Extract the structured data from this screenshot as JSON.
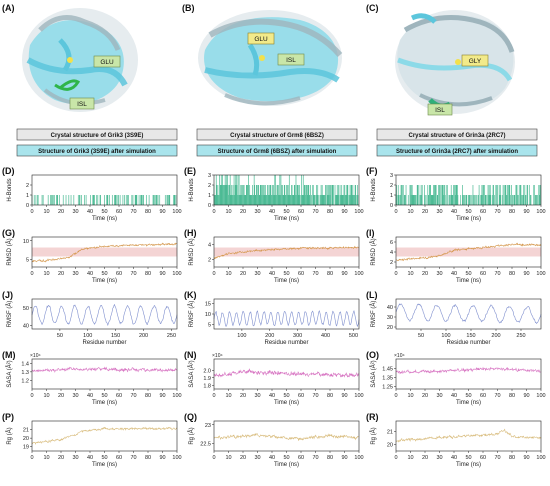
{
  "colors": {
    "hbond": "#4dbb95",
    "rmsd": "#d4964a",
    "rmsd_band": "#f4d4d4",
    "rmsf": "#7f8fce",
    "sasa": "#d774c2",
    "rg": "#d9bd7f",
    "crystal_box": "#e8e8e8",
    "sim_box": "#a9e4ec",
    "protein": "#7fd8e8",
    "protein_dark": "#9fb5bd",
    "tag_box": "#c9e6a8"
  },
  "structures": [
    {
      "panel": "(A)",
      "tags": [
        "GLU",
        "ISL"
      ],
      "crystal_label": "Crystal structure of Grik3 (3S9E)",
      "sim_label": "Structure of Grik3 (3S9E) after simulation"
    },
    {
      "panel": "(B)",
      "tags": [
        "GLU",
        "ISL"
      ],
      "crystal_label": "Crystal structure of Grm8 (6BSZ)",
      "sim_label": "Structure of Grm8 (6BSZ) after simulation"
    },
    {
      "panel": "(C)",
      "tags": [
        "GLY",
        "ISL"
      ],
      "crystal_label": "Crystal structure of Grin3a (2RC7)",
      "sim_label": "Structure of Grin3a (2RC7) after simulation"
    }
  ],
  "chart_data": [
    {
      "panel": "(D)",
      "type": "bar",
      "metric": "hbond",
      "ylabel": "H-Bonds",
      "xlabel": "Time (ns)",
      "xlim": [
        0,
        100
      ],
      "ylim": [
        0,
        3
      ],
      "yticks": [
        0,
        1,
        2
      ],
      "xticks": [
        0,
        10,
        20,
        30,
        40,
        50,
        60,
        70,
        80,
        90,
        100
      ],
      "profile": [
        [
          0,
          0.25
        ],
        [
          60,
          0.35
        ],
        [
          100,
          0.4
        ]
      ],
      "noise": 0.3,
      "seed": 11
    },
    {
      "panel": "(E)",
      "type": "bar",
      "metric": "hbond",
      "ylabel": "H-Bonds",
      "xlabel": "Time (ns)",
      "xlim": [
        0,
        100
      ],
      "ylim": [
        0,
        3
      ],
      "yticks": [
        0,
        1,
        2,
        3
      ],
      "xticks": [
        0,
        10,
        20,
        30,
        40,
        50,
        60,
        70,
        80,
        90,
        100
      ],
      "profile": [
        [
          0,
          1.9
        ],
        [
          60,
          1.5
        ],
        [
          100,
          1.2
        ]
      ],
      "noise": 0.7,
      "seed": 12
    },
    {
      "panel": "(F)",
      "type": "bar",
      "metric": "hbond",
      "ylabel": "H-Bonds",
      "xlabel": "Time (ns)",
      "xlim": [
        0,
        100
      ],
      "ylim": [
        0,
        3
      ],
      "yticks": [
        0,
        1,
        2,
        3
      ],
      "xticks": [
        0,
        10,
        20,
        30,
        40,
        50,
        60,
        70,
        80,
        90,
        100
      ],
      "profile": [
        [
          0,
          1.2
        ],
        [
          50,
          1.0
        ],
        [
          100,
          1.1
        ]
      ],
      "noise": 0.8,
      "seed": 13
    },
    {
      "panel": "(G)",
      "type": "line",
      "metric": "rmsd",
      "ylabel": "RMSD (Å)",
      "xlabel": "Time (ns)",
      "xlim": [
        0,
        100
      ],
      "ylim": [
        3,
        11
      ],
      "yticks": [
        5,
        10
      ],
      "xticks": [
        0,
        10,
        20,
        30,
        40,
        50,
        60,
        70,
        80,
        90,
        100
      ],
      "profile": [
        [
          0,
          4.5
        ],
        [
          10,
          4.8
        ],
        [
          25,
          5.5
        ],
        [
          35,
          7.8
        ],
        [
          50,
          8.5
        ],
        [
          70,
          8.8
        ],
        [
          100,
          9.2
        ]
      ],
      "noise": 0.3,
      "seed": 21
    },
    {
      "panel": "(H)",
      "type": "line",
      "metric": "rmsd",
      "ylabel": "RMSD (Å)",
      "xlabel": "Time (ns)",
      "xlim": [
        0,
        100
      ],
      "ylim": [
        1,
        5
      ],
      "yticks": [
        2,
        4
      ],
      "xticks": [
        0,
        10,
        20,
        30,
        40,
        50,
        60,
        70,
        80,
        90,
        100
      ],
      "profile": [
        [
          0,
          2.2
        ],
        [
          10,
          2.8
        ],
        [
          30,
          3.2
        ],
        [
          60,
          3.5
        ],
        [
          100,
          3.6
        ]
      ],
      "noise": 0.15,
      "seed": 22
    },
    {
      "panel": "(I)",
      "type": "line",
      "metric": "rmsd",
      "ylabel": "RMSD (Å)",
      "xlabel": "Time (ns)",
      "xlim": [
        0,
        100
      ],
      "ylim": [
        1,
        7
      ],
      "yticks": [
        2,
        4,
        6
      ],
      "xticks": [
        0,
        10,
        20,
        30,
        40,
        50,
        60,
        70,
        80,
        90,
        100
      ],
      "profile": [
        [
          0,
          2.3
        ],
        [
          30,
          3.2
        ],
        [
          40,
          4.4
        ],
        [
          70,
          5.2
        ],
        [
          80,
          5.5
        ],
        [
          100,
          5.4
        ]
      ],
      "noise": 0.25,
      "seed": 23
    },
    {
      "panel": "(J)",
      "type": "line",
      "metric": "rmsf",
      "ylabel": "RMSF (Å)",
      "xlabel": "Residue number",
      "xlim": [
        0,
        260
      ],
      "ylim": [
        38,
        55
      ],
      "yticks": [
        40,
        50
      ],
      "xticks": [
        50,
        100,
        150,
        200,
        250
      ],
      "profile": [
        [
          0,
          46
        ],
        [
          260,
          46
        ]
      ],
      "waves": 11,
      "amp": 5,
      "noise": 1.0,
      "seed": 31
    },
    {
      "panel": "(K)",
      "type": "line",
      "metric": "rmsf",
      "ylabel": "RMSF (Å)",
      "xlabel": "Residue number",
      "xlim": [
        0,
        520
      ],
      "ylim": [
        3,
        17
      ],
      "yticks": [
        5,
        10,
        15
      ],
      "xticks": [
        100,
        200,
        300,
        400,
        500
      ],
      "profile": [
        [
          0,
          8
        ],
        [
          520,
          8
        ]
      ],
      "waves": 21,
      "amp": 3,
      "noise": 0.8,
      "seed": 32
    },
    {
      "panel": "(L)",
      "type": "line",
      "metric": "rmsf",
      "ylabel": "RMSF (Å)",
      "xlabel": "Residue number",
      "xlim": [
        0,
        290
      ],
      "ylim": [
        18,
        48
      ],
      "yticks": [
        20,
        30,
        40
      ],
      "xticks": [
        50,
        100,
        150,
        200,
        250
      ],
      "profile": [
        [
          0,
          35
        ],
        [
          290,
          32
        ]
      ],
      "waves": 8,
      "amp": 8,
      "noise": 1.5,
      "seed": 33
    },
    {
      "panel": "(M)",
      "type": "line",
      "metric": "sasa",
      "ylabel": "SASA (Å²)",
      "xlabel": "Time (ns)",
      "exponent": "×10⁴",
      "xlim": [
        0,
        100
      ],
      "ylim": [
        1.1,
        1.45
      ],
      "yticks": [
        1.2,
        1.3,
        1.4
      ],
      "xticks": [
        0,
        10,
        20,
        30,
        40,
        50,
        60,
        70,
        80,
        90,
        100
      ],
      "profile": [
        [
          0,
          1.31
        ],
        [
          30,
          1.33
        ],
        [
          100,
          1.32
        ]
      ],
      "noise": 0.022,
      "seed": 41
    },
    {
      "panel": "(N)",
      "type": "line",
      "metric": "sasa",
      "ylabel": "SASA (Å²)",
      "xlabel": "Time (ns)",
      "exponent": "×10⁴",
      "xlim": [
        0,
        100
      ],
      "ylim": [
        1.75,
        2.15
      ],
      "yticks": [
        1.8,
        1.9,
        2.0
      ],
      "xticks": [
        0,
        10,
        20,
        30,
        40,
        50,
        60,
        70,
        80,
        90,
        100
      ],
      "profile": [
        [
          0,
          1.92
        ],
        [
          20,
          1.98
        ],
        [
          60,
          1.95
        ],
        [
          100,
          1.93
        ]
      ],
      "noise": 0.035,
      "seed": 42
    },
    {
      "panel": "(O)",
      "type": "line",
      "metric": "sasa",
      "ylabel": "SASA (Å²)",
      "xlabel": "Time (ns)",
      "exponent": "×10⁴",
      "xlim": [
        0,
        100
      ],
      "ylim": [
        1.22,
        1.56
      ],
      "yticks": [
        1.25,
        1.35,
        1.45
      ],
      "xticks": [
        0,
        10,
        20,
        30,
        40,
        50,
        60,
        70,
        80,
        90,
        100
      ],
      "profile": [
        [
          0,
          1.41
        ],
        [
          40,
          1.43
        ],
        [
          70,
          1.45
        ],
        [
          100,
          1.42
        ]
      ],
      "noise": 0.02,
      "seed": 43
    },
    {
      "panel": "(P)",
      "type": "line",
      "metric": "rg",
      "ylabel": "Rg (Å)",
      "xlabel": "Time (ns)",
      "xlim": [
        0,
        100
      ],
      "ylim": [
        18.5,
        22
      ],
      "yticks": [
        19,
        20,
        21
      ],
      "xticks": [
        0,
        10,
        20,
        30,
        40,
        50,
        60,
        70,
        80,
        90,
        100
      ],
      "profile": [
        [
          0,
          19.4
        ],
        [
          20,
          19.8
        ],
        [
          35,
          20.8
        ],
        [
          50,
          21.1
        ],
        [
          100,
          21.1
        ]
      ],
      "noise": 0.15,
      "seed": 51
    },
    {
      "panel": "(Q)",
      "type": "line",
      "metric": "rg",
      "ylabel": "Rg (Å)",
      "xlabel": "Time (ns)",
      "xlim": [
        0,
        100
      ],
      "ylim": [
        22.3,
        23.1
      ],
      "yticks": [
        22.5,
        23.0
      ],
      "xticks": [
        0,
        10,
        20,
        30,
        40,
        50,
        60,
        70,
        80,
        90,
        100
      ],
      "profile": [
        [
          0,
          22.65
        ],
        [
          30,
          22.72
        ],
        [
          60,
          22.62
        ],
        [
          80,
          22.7
        ],
        [
          100,
          22.65
        ]
      ],
      "noise": 0.05,
      "seed": 52
    },
    {
      "panel": "(R)",
      "type": "line",
      "metric": "rg",
      "ylabel": "Rg (Å)",
      "xlabel": "Time (ns)",
      "xlim": [
        0,
        100
      ],
      "ylim": [
        19.5,
        21.8
      ],
      "yticks": [
        20,
        21
      ],
      "xticks": [
        0,
        10,
        20,
        30,
        40,
        50,
        60,
        70,
        80,
        90,
        100
      ],
      "profile": [
        [
          0,
          20.3
        ],
        [
          40,
          20.6
        ],
        [
          70,
          20.8
        ],
        [
          75,
          21.1
        ],
        [
          80,
          20.6
        ],
        [
          100,
          20.5
        ]
      ],
      "noise": 0.12,
      "seed": 53
    }
  ]
}
